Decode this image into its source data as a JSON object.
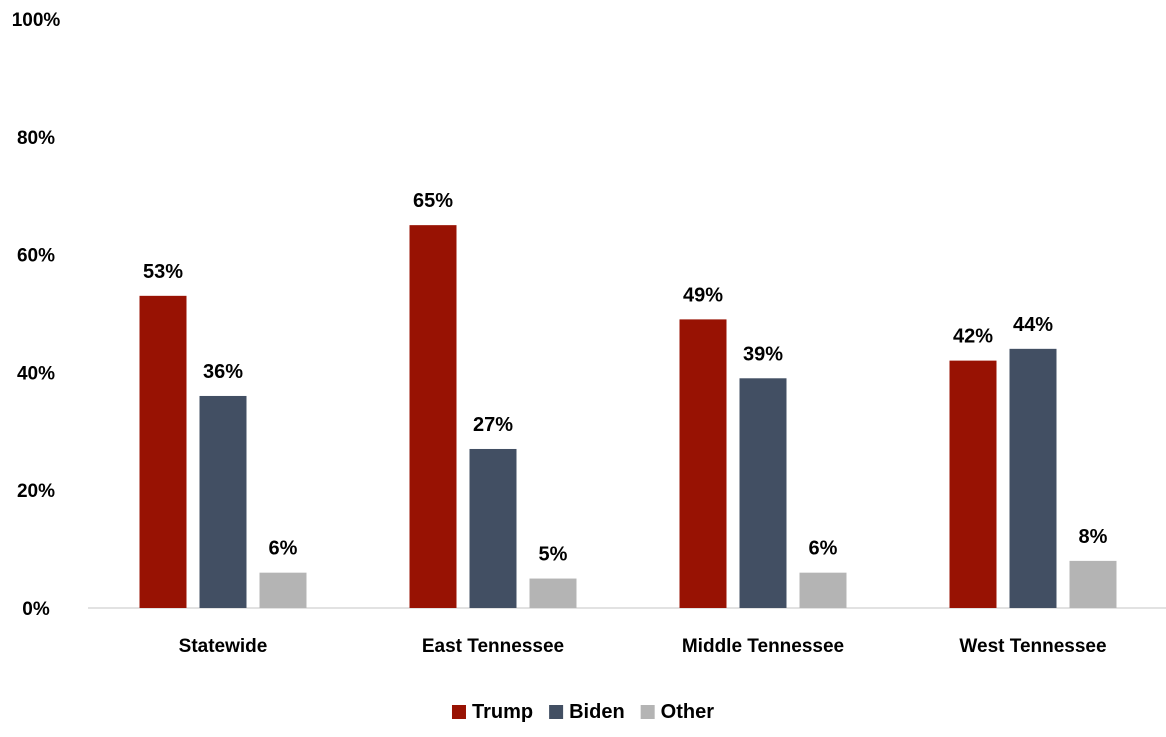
{
  "chart_data": {
    "type": "bar",
    "title": "",
    "xlabel": "",
    "ylabel": "",
    "ylim": [
      0,
      100
    ],
    "yticks": [
      0,
      20,
      40,
      60,
      80,
      100
    ],
    "ytick_labels": [
      "0%",
      "20%",
      "40%",
      "60%",
      "80%",
      "100%"
    ],
    "grid": false,
    "legend_position": "bottom",
    "categories": [
      "Statewide",
      "East Tennessee",
      "Middle Tennessee",
      "West Tennessee"
    ],
    "series": [
      {
        "name": "Trump",
        "color": "#981203",
        "values": [
          53,
          65,
          49,
          42
        ],
        "labels": [
          "53%",
          "65%",
          "49%",
          "42%"
        ]
      },
      {
        "name": "Biden",
        "color": "#424F63",
        "values": [
          36,
          27,
          39,
          44
        ],
        "labels": [
          "36%",
          "27%",
          "39%",
          "44%"
        ]
      },
      {
        "name": "Other",
        "color": "#B4B4B4",
        "values": [
          6,
          5,
          6,
          8
        ],
        "labels": [
          "6%",
          "5%",
          "6%",
          "8%"
        ]
      }
    ]
  }
}
